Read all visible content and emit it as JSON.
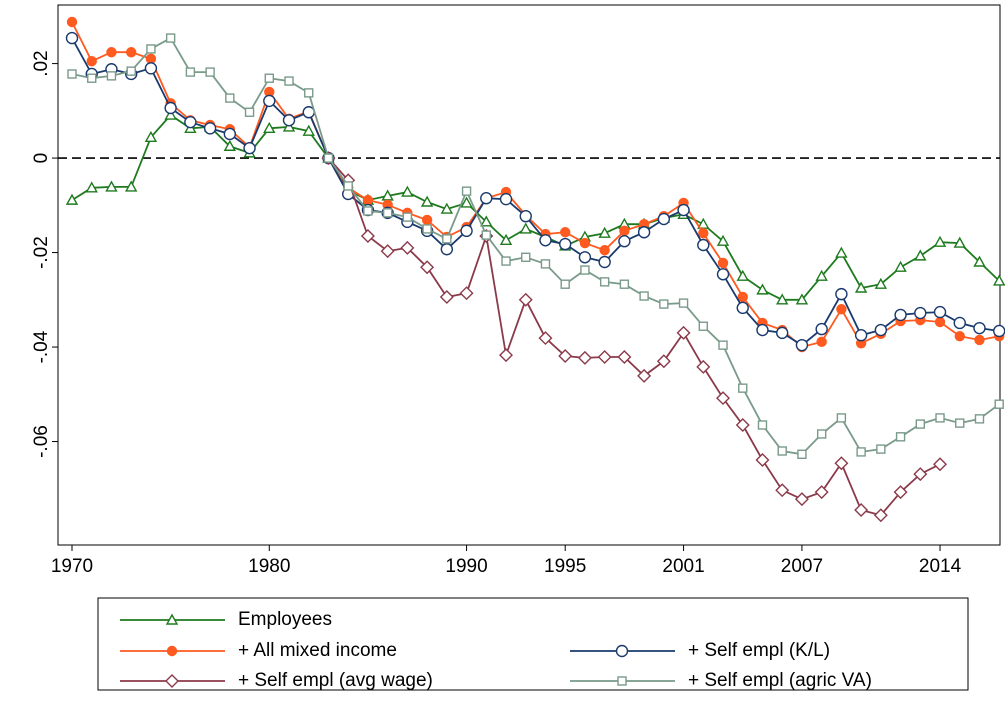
{
  "chart_data": {
    "type": "line",
    "x": [
      1970,
      1971,
      1972,
      1973,
      1974,
      1975,
      1976,
      1977,
      1978,
      1979,
      1980,
      1981,
      1982,
      1983,
      1984,
      1985,
      1986,
      1987,
      1988,
      1989,
      1990,
      1991,
      1992,
      1993,
      1994,
      1995,
      1996,
      1997,
      1998,
      1999,
      2000,
      2001,
      2002,
      2003,
      2004,
      2005,
      2006,
      2007,
      2008,
      2009,
      2010,
      2011,
      2012,
      2013,
      2014,
      2015,
      2016,
      2017
    ],
    "xlim": [
      1969.29,
      2017.04
    ],
    "xticks": [
      1970,
      1980,
      1990,
      1995,
      2001,
      2007,
      2014
    ],
    "ylim": [
      -0.0819,
      0.0324
    ],
    "yticks": [
      {
        "value": -0.06,
        "label": "-.06"
      },
      {
        "value": -0.04,
        "label": "-.04"
      },
      {
        "value": -0.02,
        "label": "-.02"
      },
      0,
      {
        "value": 0.02,
        "label": ".02"
      }
    ],
    "yline": 0,
    "series": [
      {
        "name": "Employees",
        "color": "#1e7a1e",
        "marker": "triangle",
        "values": [
          -0.0089,
          -0.0063,
          -0.0061,
          -0.0061,
          0.0044,
          0.0091,
          0.0063,
          0.0066,
          0.0025,
          0.0011,
          0.0063,
          0.0066,
          0.0057,
          0,
          -0.0068,
          -0.0089,
          -0.008,
          -0.0072,
          -0.0093,
          -0.0108,
          -0.0095,
          -0.0135,
          -0.0174,
          -0.015,
          -0.0167,
          -0.0186,
          -0.0167,
          -0.0159,
          -0.014,
          -0.014,
          -0.0127,
          -0.0119,
          -0.014,
          -0.0176,
          -0.025,
          -0.0279,
          -0.03,
          -0.03,
          -0.025,
          -0.0201,
          -0.0275,
          -0.0267,
          -0.0231,
          -0.0207,
          -0.0178,
          -0.018,
          -0.022,
          -0.026
        ]
      },
      {
        "name": "+ All mixed income",
        "color": "#ff5a1f",
        "marker": "dot",
        "values": [
          0.0288,
          0.0205,
          0.0224,
          0.0224,
          0.021,
          0.0116,
          0.008,
          0.007,
          0.0061,
          0.0023,
          0.014,
          0.0083,
          0.0099,
          0,
          -0.0063,
          -0.0089,
          -0.0099,
          -0.0116,
          -0.0131,
          -0.0167,
          -0.0146,
          -0.0085,
          -0.0072,
          -0.0121,
          -0.0161,
          -0.0157,
          -0.018,
          -0.0195,
          -0.0154,
          -0.014,
          -0.0123,
          -0.0095,
          -0.0159,
          -0.0222,
          -0.0294,
          -0.0349,
          -0.0364,
          -0.04,
          -0.0389,
          -0.032,
          -0.0392,
          -0.0372,
          -0.0345,
          -0.0343,
          -0.0347,
          -0.0377,
          -0.0385,
          -0.0377
        ]
      },
      {
        "name": "+ Self empl (K/L)",
        "color": "#1a3a6e",
        "marker": "circle",
        "values": [
          0.0254,
          0.0178,
          0.0188,
          0.0178,
          0.019,
          0.0106,
          0.0076,
          0.0063,
          0.0051,
          0.0021,
          0.0121,
          0.008,
          0.0097,
          0,
          -0.0076,
          -0.011,
          -0.0116,
          -0.0135,
          -0.0154,
          -0.0193,
          -0.0154,
          -0.0085,
          -0.0087,
          -0.0123,
          -0.0174,
          -0.0182,
          -0.021,
          -0.022,
          -0.0176,
          -0.0157,
          -0.0129,
          -0.011,
          -0.0184,
          -0.0246,
          -0.0317,
          -0.0364,
          -0.037,
          -0.0396,
          -0.0362,
          -0.0288,
          -0.0375,
          -0.0364,
          -0.0332,
          -0.0328,
          -0.0326,
          -0.0349,
          -0.036,
          -0.0366
        ]
      },
      {
        "name": "+ Self empl (avg wage)",
        "color": "#8b3a4a",
        "marker": "diamond",
        "values": [
          null,
          null,
          null,
          null,
          null,
          null,
          null,
          null,
          null,
          null,
          null,
          null,
          null,
          0,
          -0.0047,
          -0.0165,
          -0.0197,
          -0.019,
          -0.0231,
          -0.0294,
          -0.0286,
          -0.0165,
          -0.0417,
          -0.03,
          -0.0381,
          -0.0419,
          -0.0423,
          -0.0421,
          -0.0421,
          -0.0461,
          -0.043,
          -0.037,
          -0.0442,
          -0.0508,
          -0.0565,
          -0.0639,
          -0.0703,
          -0.0722,
          -0.0707,
          -0.0646,
          -0.0745,
          -0.0756,
          -0.0707,
          -0.0669,
          -0.0648,
          null,
          null,
          null
        ]
      },
      {
        "name": "+ Self empl (agric VA)",
        "color": "#7a9a8a",
        "marker": "square",
        "values": [
          0.0178,
          0.0169,
          0.0174,
          0.0184,
          0.0231,
          0.0254,
          0.0182,
          0.0182,
          0.0127,
          0.0097,
          0.0169,
          0.0163,
          0.0138,
          0,
          -0.0059,
          -0.0112,
          -0.0116,
          -0.0125,
          -0.015,
          -0.0171,
          -0.007,
          -0.0163,
          -0.0218,
          -0.021,
          -0.0224,
          -0.0267,
          -0.0237,
          -0.0262,
          -0.0267,
          -0.0292,
          -0.0309,
          -0.0307,
          -0.0356,
          -0.0396,
          -0.0487,
          -0.0565,
          -0.062,
          -0.0627,
          -0.0584,
          -0.055,
          -0.0622,
          -0.0616,
          -0.059,
          -0.0563,
          -0.055,
          -0.0561,
          -0.0552,
          -0.0521
        ]
      }
    ]
  }
}
